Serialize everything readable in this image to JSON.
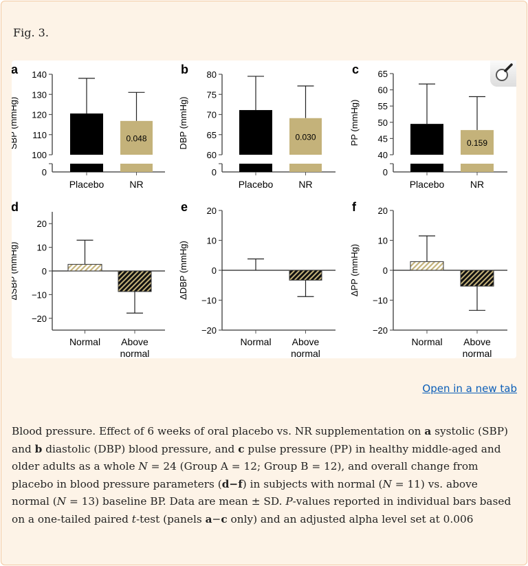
{
  "figure_label": "Fig. 3.",
  "open_link": "Open in a new tab",
  "colors": {
    "nr": "#c4b27a",
    "placebo": "#000000",
    "background": "#fdf3e7",
    "link": "#0b5eb8"
  },
  "zoom_icon": "magnifier-icon",
  "chart_data": [
    {
      "panel": "a",
      "type": "bar",
      "ylabel": "SBP (mmHg)",
      "categories": [
        "Placebo",
        "NR"
      ],
      "values": [
        120.5,
        116.8
      ],
      "error_upper": [
        138,
        131
      ],
      "annotation": "0.048",
      "ylim": [
        100,
        140
      ],
      "yticks": [
        100,
        110,
        120,
        130,
        140
      ],
      "axis_break": true,
      "zero_tick": "0"
    },
    {
      "panel": "b",
      "type": "bar",
      "ylabel": "DBP (mmHg)",
      "categories": [
        "Placebo",
        "NR"
      ],
      "values": [
        71.1,
        69.1
      ],
      "error_upper": [
        79.5,
        77.1
      ],
      "annotation": "0.030",
      "ylim": [
        60,
        80
      ],
      "yticks": [
        60,
        65,
        70,
        75,
        80
      ],
      "axis_break": true,
      "zero_tick": "0"
    },
    {
      "panel": "c",
      "type": "bar",
      "ylabel": "PP (mmHg)",
      "categories": [
        "Placebo",
        "NR"
      ],
      "values": [
        49.5,
        47.6
      ],
      "error_upper": [
        61.8,
        57.9
      ],
      "annotation": "0.159",
      "ylim": [
        40,
        65
      ],
      "yticks": [
        40,
        45,
        50,
        55,
        60,
        65
      ],
      "axis_break": true,
      "zero_tick": "0"
    },
    {
      "panel": "d",
      "type": "bar",
      "ylabel": "ΔSBP (mmHg)",
      "categories": [
        "Normal",
        "Above normal"
      ],
      "values": [
        2.8,
        -8.7
      ],
      "error_end": [
        13,
        -17.8
      ],
      "ylim": [
        -25,
        25
      ],
      "yticks": [
        -20,
        -10,
        0,
        10,
        20
      ]
    },
    {
      "panel": "e",
      "type": "bar",
      "ylabel": "ΔDBP (mmHg)",
      "categories": [
        "Normal",
        "Above normal"
      ],
      "values": [
        0,
        -3.3
      ],
      "error_end": [
        3.8,
        -8.8
      ],
      "ylim": [
        -20,
        20
      ],
      "yticks": [
        -20,
        -10,
        0,
        10,
        20
      ]
    },
    {
      "panel": "f",
      "type": "bar",
      "ylabel": "ΔPP (mmHg)",
      "categories": [
        "Normal",
        "Above normal"
      ],
      "values": [
        2.9,
        -5.3
      ],
      "error_end": [
        11.5,
        -13.4
      ],
      "ylim": [
        -20,
        20
      ],
      "yticks": [
        -20,
        -10,
        0,
        10,
        20
      ]
    }
  ],
  "caption": [
    {
      "t": "Blood pressure. Effect of 6 weeks of oral placebo vs. NR supplementation on "
    },
    {
      "t": "a",
      "b": true
    },
    {
      "t": " systolic (SBP) and "
    },
    {
      "t": "b",
      "b": true
    },
    {
      "t": " diastolic (DBP) blood pressure, and "
    },
    {
      "t": "c",
      "b": true
    },
    {
      "t": " pulse pressure (PP) in healthy middle-aged and older adults as a whole "
    },
    {
      "t": "N",
      "i": true
    },
    {
      "t": " = 24 (Group A = 12; Group B = 12), and overall change from placebo in blood pressure parameters ("
    },
    {
      "t": "d−f",
      "b": true
    },
    {
      "t": ") in subjects with normal ("
    },
    {
      "t": "N",
      "i": true
    },
    {
      "t": " = 11) vs. above normal ("
    },
    {
      "t": "N",
      "i": true
    },
    {
      "t": " = 13) baseline BP. Data are mean ± SD. "
    },
    {
      "t": "P",
      "i": true
    },
    {
      "t": "-values reported in individual bars based on a one-tailed paired "
    },
    {
      "t": "t",
      "i": true
    },
    {
      "t": "-test (panels "
    },
    {
      "t": "a",
      "b": true
    },
    {
      "t": "−"
    },
    {
      "t": "c",
      "b": true
    },
    {
      "t": " only) and an adjusted alpha level set at 0.006"
    }
  ]
}
